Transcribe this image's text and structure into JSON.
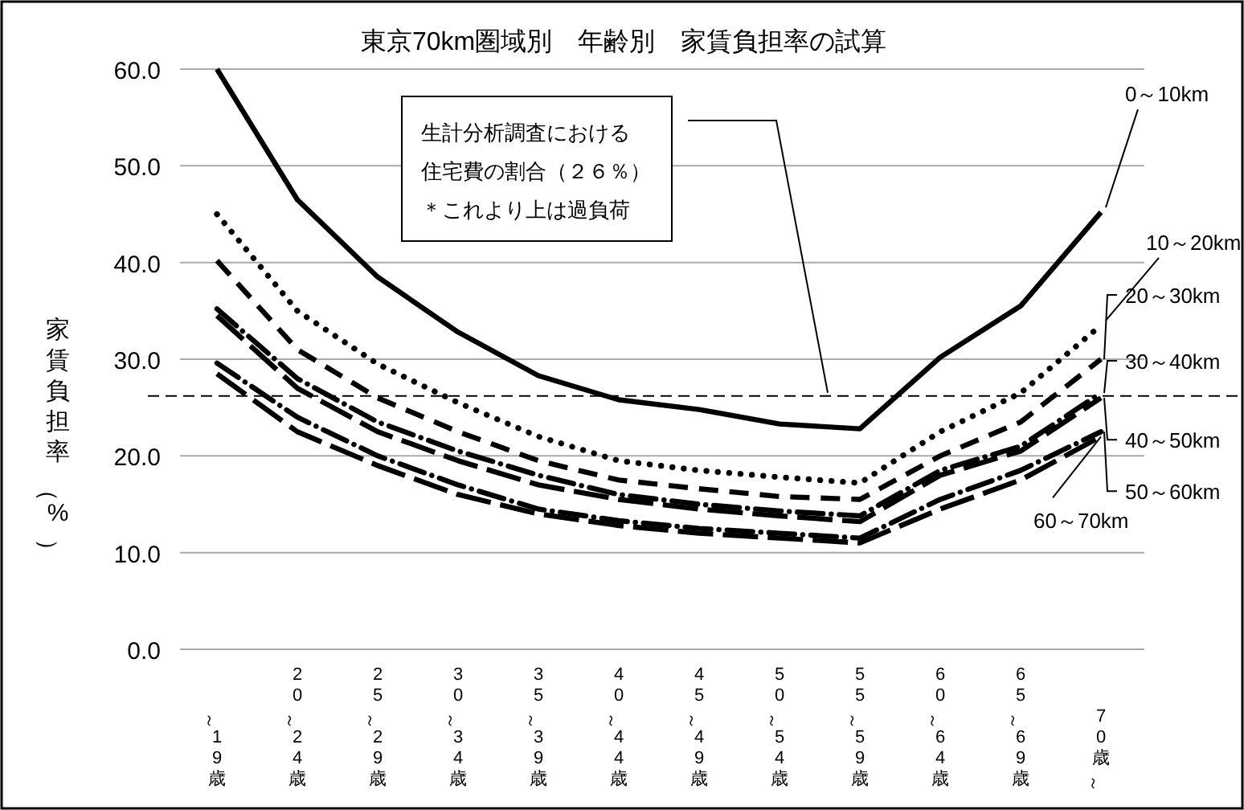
{
  "chart_data": {
    "type": "line",
    "title": "東京70km圏域別　年齢別　家賃負担率の試算",
    "ylabel": "家賃負担率（%）",
    "categories": [
      "～19歳",
      "20～24歳",
      "25～29歳",
      "30～34歳",
      "35～39歳",
      "40～44歳",
      "45～49歳",
      "50～54歳",
      "55～59歳",
      "60～64歳",
      "65～69歳",
      "70歳～"
    ],
    "series": [
      {
        "name": "0～10km",
        "color": "#000000",
        "line_style": "solid",
        "values": [
          60,
          46.5,
          38.5,
          32.8,
          28.3,
          25.8,
          24.8,
          23.3,
          22.8,
          30.2,
          35.5,
          45.2
        ]
      },
      {
        "name": "10～20km",
        "color": "#000000",
        "line_style": "dotted",
        "values": [
          45,
          35,
          29.5,
          25.5,
          22,
          19.5,
          18.5,
          17.8,
          17.2,
          22.5,
          26.5,
          33.5
        ]
      },
      {
        "name": "20～30km",
        "color": "#000000",
        "line_style": "dashed",
        "values": [
          40.2,
          31,
          26,
          22.5,
          19.5,
          17.5,
          16.6,
          15.8,
          15.5,
          20,
          23.5,
          30
        ]
      },
      {
        "name": "30～40km",
        "color": "#000000",
        "line_style": "dashdot",
        "values": [
          35.2,
          28,
          23.5,
          20.5,
          18,
          16,
          15,
          14.3,
          13.8,
          18.5,
          21,
          26.5
        ]
      },
      {
        "name": "40～50km",
        "color": "#000000",
        "line_style": "longdash",
        "values": [
          34.5,
          27,
          22.5,
          19.5,
          17,
          15.5,
          14.5,
          13.8,
          13.2,
          18,
          20.5,
          26
        ]
      },
      {
        "name": "50～60km",
        "color": "#000000",
        "line_style": "dashdot",
        "values": [
          29.6,
          24,
          20,
          17,
          14.5,
          13.3,
          12.5,
          12,
          11.5,
          15.5,
          18.5,
          22.5
        ]
      },
      {
        "name": "60～70km",
        "color": "#000000",
        "line_style": "longdash",
        "values": [
          28.5,
          22.5,
          19,
          16,
          14,
          12.8,
          12,
          11.5,
          11,
          14.5,
          17.5,
          22
        ]
      }
    ],
    "ylim": [
      0,
      60
    ],
    "yticks": [
      {
        "value": 0,
        "label": "0.0"
      },
      {
        "value": 10,
        "label": "10.0"
      },
      {
        "value": 20,
        "label": "20.0"
      },
      {
        "value": 30,
        "label": "30.0"
      },
      {
        "value": 40,
        "label": "40.0"
      },
      {
        "value": 50,
        "label": "50.0"
      },
      {
        "value": 60,
        "label": "60.0"
      }
    ],
    "grid": "y",
    "legend": false,
    "annotations": [
      "生計分析調査における",
      "住宅費の割合（２６％）",
      "＊これより上は過負荷"
    ],
    "ref_lines": [
      {
        "axis": "y",
        "value": 26.2,
        "color": "#000000",
        "line_style": "dashed"
      }
    ]
  }
}
